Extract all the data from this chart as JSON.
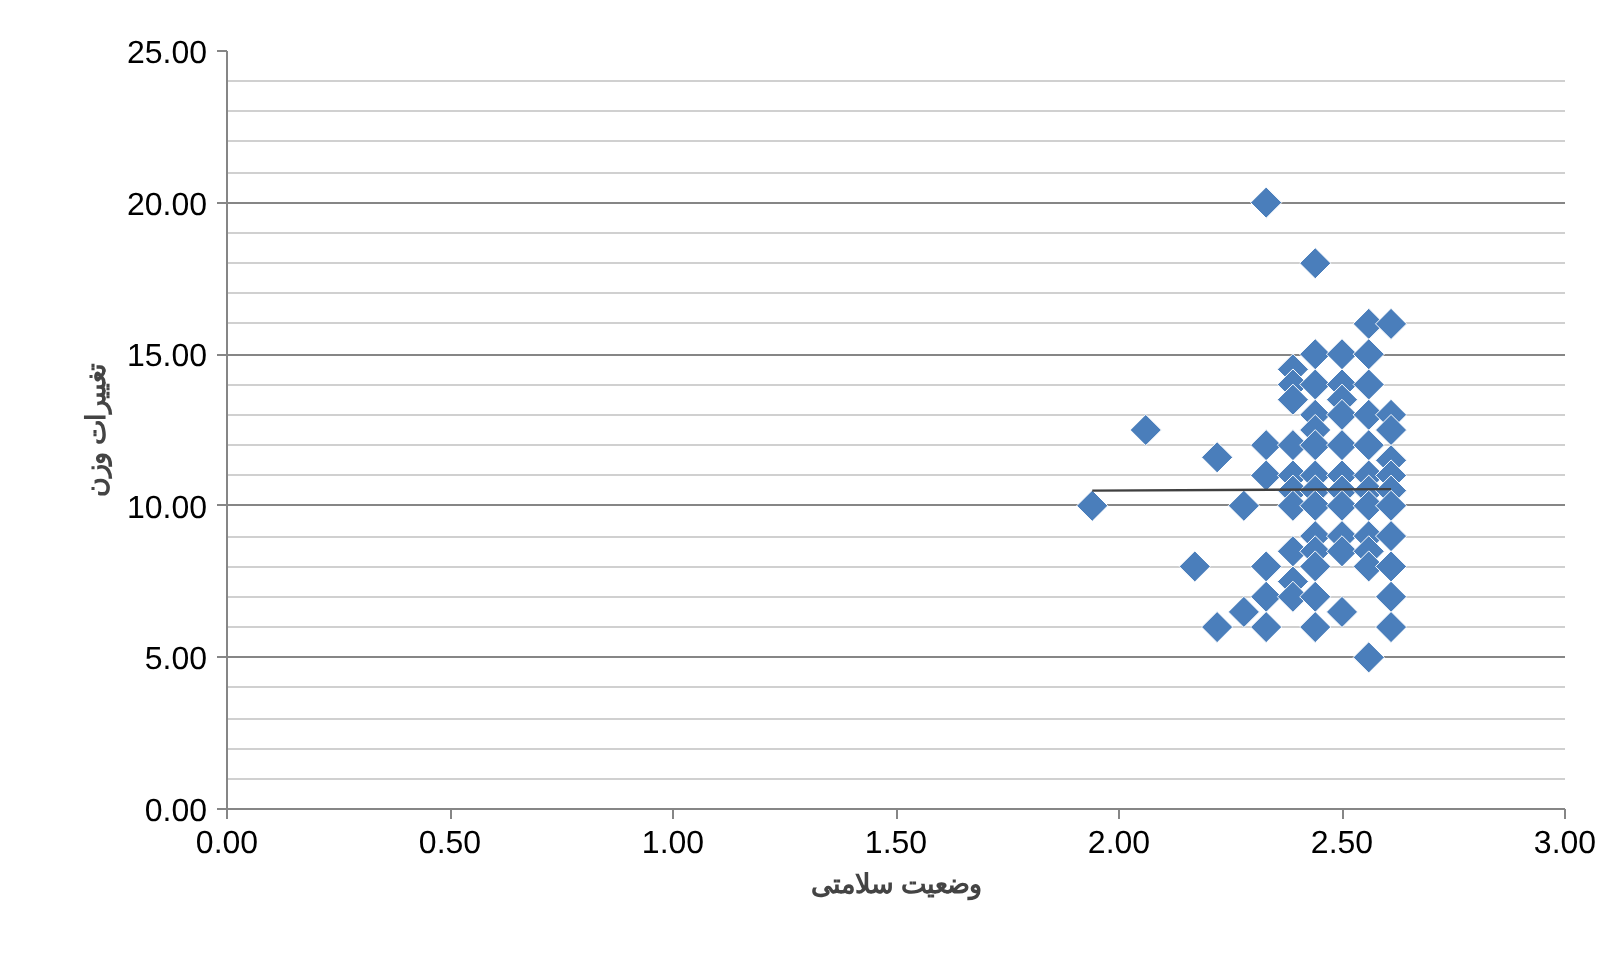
{
  "chart_data": {
    "type": "scatter",
    "xlabel": "وضعیت سلامتی",
    "ylabel": "تغییرات وزن",
    "marker": "diamond",
    "grid": "y",
    "xlim": [
      0,
      3
    ],
    "ylim": [
      0,
      25
    ],
    "xticks": [
      {
        "value": 0,
        "label": "0.00"
      },
      {
        "value": 0.5,
        "label": "0.50"
      },
      {
        "value": 1,
        "label": "1.00"
      },
      {
        "value": 1.5,
        "label": "1.50"
      },
      {
        "value": 2,
        "label": "2.00"
      },
      {
        "value": 2.5,
        "label": "2.50"
      },
      {
        "value": 3,
        "label": "3.00"
      }
    ],
    "yticks": [
      {
        "value": 0,
        "label": "0.00"
      },
      {
        "value": 5,
        "label": "5.00"
      },
      {
        "value": 10,
        "label": "10.00"
      },
      {
        "value": 15,
        "label": "15.00"
      },
      {
        "value": 20,
        "label": "20.00"
      },
      {
        "value": 25,
        "label": "25.00"
      }
    ],
    "series": [
      {
        "color": "#4a7ebb",
        "x": [
          1.94,
          2.06,
          2.17,
          2.22,
          2.22,
          2.28,
          2.28,
          2.33,
          2.33,
          2.33,
          2.33,
          2.33,
          2.33,
          2.39,
          2.39,
          2.39,
          2.39,
          2.39,
          2.39,
          2.39,
          2.39,
          2.39,
          2.39,
          2.44,
          2.44,
          2.44,
          2.44,
          2.44,
          2.44,
          2.44,
          2.44,
          2.44,
          2.44,
          2.44,
          2.44,
          2.44,
          2.44,
          2.5,
          2.5,
          2.5,
          2.5,
          2.5,
          2.5,
          2.5,
          2.5,
          2.5,
          2.5,
          2.5,
          2.56,
          2.56,
          2.56,
          2.56,
          2.56,
          2.56,
          2.56,
          2.56,
          2.56,
          2.56,
          2.56,
          2.56,
          2.61,
          2.61,
          2.61,
          2.61,
          2.61,
          2.61,
          2.61,
          2.61,
          2.61,
          2.61,
          2.61
        ],
        "values": [
          10,
          12.5,
          8,
          11.6,
          6,
          10,
          6.5,
          20,
          12,
          11,
          8,
          7,
          6,
          14.5,
          14,
          13.5,
          12,
          11,
          10.5,
          10,
          8.5,
          7.5,
          7,
          18,
          15,
          14,
          13,
          12.5,
          12,
          11,
          10.5,
          10,
          9,
          8.5,
          8,
          7,
          6,
          15,
          14,
          13.5,
          13,
          12,
          11,
          10.5,
          10,
          9,
          8.5,
          6.5,
          16,
          15,
          14,
          13,
          12,
          11,
          10.5,
          10,
          9,
          8.5,
          8,
          5,
          16,
          13,
          12.5,
          11.5,
          11,
          10.5,
          10,
          9,
          8,
          7,
          6
        ]
      },
      {
        "type": "line",
        "marker": "none",
        "color": "#404040",
        "x": [
          1.94,
          2.61
        ],
        "values": [
          10.5,
          10.55
        ]
      }
    ]
  }
}
